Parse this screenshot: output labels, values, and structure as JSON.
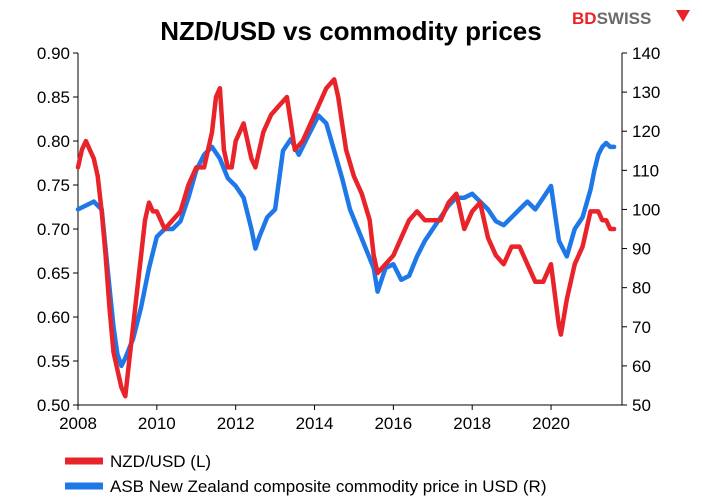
{
  "brand": {
    "logo_text_part1": "BD",
    "logo_text_part2": "SWISS",
    "part1_color": "#e8242a",
    "part2_color": "#6b6b6b"
  },
  "chart_data": {
    "type": "line",
    "title": "NZD/USD vs commodity prices",
    "xlabel": "",
    "xlim": [
      2008,
      2021.8
    ],
    "x_ticks": [
      "2008",
      "2010",
      "2012",
      "2014",
      "2016",
      "2018",
      "2020"
    ],
    "y_left": {
      "ylim": [
        0.5,
        0.9
      ],
      "ticks": [
        "0.50",
        "0.55",
        "0.60",
        "0.65",
        "0.70",
        "0.75",
        "0.80",
        "0.85",
        "0.90"
      ]
    },
    "y_right": {
      "ylim": [
        50,
        140
      ],
      "ticks": [
        "50",
        "60",
        "70",
        "80",
        "90",
        "100",
        "110",
        "120",
        "130",
        "140"
      ]
    },
    "grid": false,
    "legend_position": "bottom-left",
    "series": [
      {
        "name": "NZD/USD (L)",
        "axis": "left",
        "color": "#e8242a",
        "points": [
          [
            2008.0,
            0.77
          ],
          [
            2008.1,
            0.79
          ],
          [
            2008.2,
            0.8
          ],
          [
            2008.3,
            0.79
          ],
          [
            2008.4,
            0.78
          ],
          [
            2008.5,
            0.76
          ],
          [
            2008.6,
            0.72
          ],
          [
            2008.7,
            0.67
          ],
          [
            2008.8,
            0.61
          ],
          [
            2008.9,
            0.56
          ],
          [
            2009.0,
            0.54
          ],
          [
            2009.1,
            0.52
          ],
          [
            2009.2,
            0.51
          ],
          [
            2009.3,
            0.55
          ],
          [
            2009.4,
            0.59
          ],
          [
            2009.5,
            0.63
          ],
          [
            2009.6,
            0.67
          ],
          [
            2009.7,
            0.71
          ],
          [
            2009.8,
            0.73
          ],
          [
            2009.9,
            0.72
          ],
          [
            2010.0,
            0.72
          ],
          [
            2010.2,
            0.7
          ],
          [
            2010.4,
            0.71
          ],
          [
            2010.6,
            0.72
          ],
          [
            2010.8,
            0.75
          ],
          [
            2011.0,
            0.77
          ],
          [
            2011.2,
            0.77
          ],
          [
            2011.4,
            0.81
          ],
          [
            2011.5,
            0.85
          ],
          [
            2011.6,
            0.86
          ],
          [
            2011.7,
            0.79
          ],
          [
            2011.8,
            0.77
          ],
          [
            2011.9,
            0.77
          ],
          [
            2012.0,
            0.8
          ],
          [
            2012.2,
            0.82
          ],
          [
            2012.4,
            0.78
          ],
          [
            2012.5,
            0.77
          ],
          [
            2012.7,
            0.81
          ],
          [
            2012.9,
            0.83
          ],
          [
            2013.1,
            0.84
          ],
          [
            2013.3,
            0.85
          ],
          [
            2013.4,
            0.82
          ],
          [
            2013.5,
            0.79
          ],
          [
            2013.7,
            0.8
          ],
          [
            2013.9,
            0.82
          ],
          [
            2014.1,
            0.84
          ],
          [
            2014.3,
            0.86
          ],
          [
            2014.5,
            0.87
          ],
          [
            2014.6,
            0.85
          ],
          [
            2014.7,
            0.82
          ],
          [
            2014.8,
            0.79
          ],
          [
            2015.0,
            0.76
          ],
          [
            2015.2,
            0.74
          ],
          [
            2015.4,
            0.71
          ],
          [
            2015.5,
            0.67
          ],
          [
            2015.6,
            0.65
          ],
          [
            2015.8,
            0.66
          ],
          [
            2016.0,
            0.67
          ],
          [
            2016.2,
            0.69
          ],
          [
            2016.4,
            0.71
          ],
          [
            2016.6,
            0.72
          ],
          [
            2016.8,
            0.71
          ],
          [
            2017.0,
            0.71
          ],
          [
            2017.2,
            0.71
          ],
          [
            2017.4,
            0.73
          ],
          [
            2017.6,
            0.74
          ],
          [
            2017.8,
            0.7
          ],
          [
            2018.0,
            0.72
          ],
          [
            2018.2,
            0.73
          ],
          [
            2018.4,
            0.69
          ],
          [
            2018.6,
            0.67
          ],
          [
            2018.8,
            0.66
          ],
          [
            2019.0,
            0.68
          ],
          [
            2019.2,
            0.68
          ],
          [
            2019.4,
            0.66
          ],
          [
            2019.6,
            0.64
          ],
          [
            2019.8,
            0.64
          ],
          [
            2020.0,
            0.66
          ],
          [
            2020.2,
            0.59
          ],
          [
            2020.25,
            0.58
          ],
          [
            2020.4,
            0.62
          ],
          [
            2020.6,
            0.66
          ],
          [
            2020.8,
            0.68
          ],
          [
            2021.0,
            0.72
          ],
          [
            2021.2,
            0.72
          ],
          [
            2021.3,
            0.71
          ],
          [
            2021.4,
            0.71
          ],
          [
            2021.5,
            0.7
          ],
          [
            2021.6,
            0.7
          ]
        ]
      },
      {
        "name": "ASB New Zealand composite commodity price in USD (R)",
        "axis": "right",
        "color": "#1f78e8",
        "points": [
          [
            2008.0,
            100
          ],
          [
            2008.2,
            101
          ],
          [
            2008.4,
            102
          ],
          [
            2008.6,
            100
          ],
          [
            2008.7,
            90
          ],
          [
            2008.8,
            80
          ],
          [
            2008.9,
            70
          ],
          [
            2009.0,
            63
          ],
          [
            2009.1,
            60
          ],
          [
            2009.2,
            62
          ],
          [
            2009.4,
            67
          ],
          [
            2009.6,
            75
          ],
          [
            2009.8,
            85
          ],
          [
            2010.0,
            93
          ],
          [
            2010.2,
            95
          ],
          [
            2010.4,
            95
          ],
          [
            2010.6,
            97
          ],
          [
            2010.8,
            103
          ],
          [
            2011.0,
            110
          ],
          [
            2011.2,
            114
          ],
          [
            2011.4,
            116
          ],
          [
            2011.6,
            113
          ],
          [
            2011.8,
            108
          ],
          [
            2012.0,
            106
          ],
          [
            2012.2,
            103
          ],
          [
            2012.4,
            95
          ],
          [
            2012.5,
            90
          ],
          [
            2012.6,
            93
          ],
          [
            2012.8,
            98
          ],
          [
            2013.0,
            100
          ],
          [
            2013.2,
            115
          ],
          [
            2013.4,
            118
          ],
          [
            2013.6,
            114
          ],
          [
            2013.8,
            118
          ],
          [
            2014.0,
            122
          ],
          [
            2014.1,
            124
          ],
          [
            2014.3,
            122
          ],
          [
            2014.5,
            115
          ],
          [
            2014.7,
            108
          ],
          [
            2014.9,
            100
          ],
          [
            2015.1,
            95
          ],
          [
            2015.3,
            90
          ],
          [
            2015.5,
            85
          ],
          [
            2015.6,
            79
          ],
          [
            2015.8,
            85
          ],
          [
            2016.0,
            86
          ],
          [
            2016.2,
            82
          ],
          [
            2016.4,
            83
          ],
          [
            2016.6,
            88
          ],
          [
            2016.8,
            92
          ],
          [
            2017.0,
            95
          ],
          [
            2017.2,
            98
          ],
          [
            2017.4,
            101
          ],
          [
            2017.6,
            103
          ],
          [
            2017.8,
            103
          ],
          [
            2018.0,
            104
          ],
          [
            2018.2,
            102
          ],
          [
            2018.4,
            100
          ],
          [
            2018.6,
            97
          ],
          [
            2018.8,
            96
          ],
          [
            2019.0,
            98
          ],
          [
            2019.2,
            100
          ],
          [
            2019.4,
            102
          ],
          [
            2019.6,
            100
          ],
          [
            2019.8,
            103
          ],
          [
            2020.0,
            106
          ],
          [
            2020.2,
            92
          ],
          [
            2020.4,
            88
          ],
          [
            2020.6,
            95
          ],
          [
            2020.8,
            98
          ],
          [
            2021.0,
            105
          ],
          [
            2021.1,
            110
          ],
          [
            2021.2,
            114
          ],
          [
            2021.3,
            116
          ],
          [
            2021.4,
            117
          ],
          [
            2021.5,
            116
          ],
          [
            2021.6,
            116
          ]
        ]
      }
    ]
  }
}
